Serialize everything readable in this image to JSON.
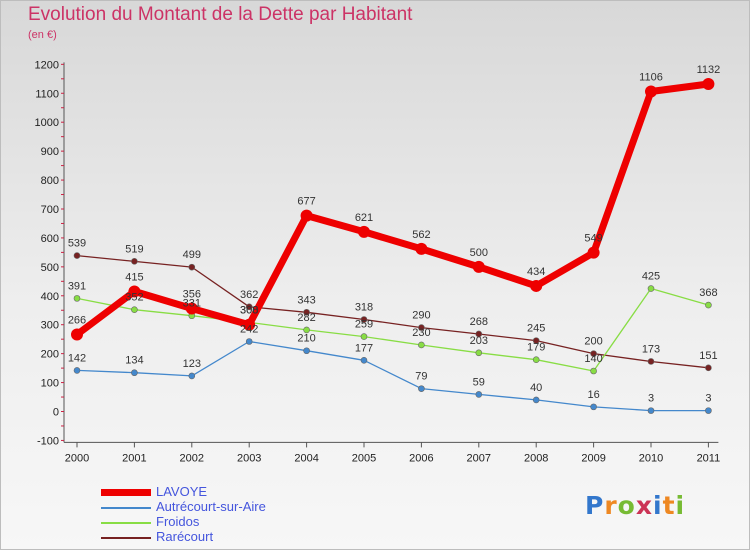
{
  "title": "Evolution du Montant de la Dette par Habitant",
  "unit": "(en €)",
  "logo": {
    "text": "Proxiti",
    "letter_colors": [
      "#3377cc",
      "#ee8822",
      "#77bb33",
      "#cc3355",
      "#3377cc",
      "#ee8822",
      "#77bb33"
    ]
  },
  "chart_data": {
    "type": "line",
    "title": "Evolution du Montant de la Dette par Habitant",
    "subtitle": "(en €)",
    "xlabel": "",
    "ylabel": "",
    "categories": [
      "2000",
      "2001",
      "2002",
      "2003",
      "2004",
      "2005",
      "2006",
      "2007",
      "2008",
      "2009",
      "2010",
      "2011"
    ],
    "ylim": [
      -100,
      1200
    ],
    "yticks": [
      -100,
      0,
      100,
      200,
      300,
      400,
      500,
      600,
      700,
      800,
      900,
      1000,
      1100,
      1200
    ],
    "grid": false,
    "legend_position": "bottom-left",
    "series": [
      {
        "name": "Rarécourt",
        "color": "#772222",
        "values": [
          539,
          519,
          499,
          362,
          343,
          318,
          290,
          268,
          245,
          200,
          173,
          151
        ]
      },
      {
        "name": "Froidos",
        "color": "#88dd44",
        "values": [
          391,
          352,
          331,
          308,
          282,
          259,
          230,
          203,
          179,
          140,
          425,
          368
        ]
      },
      {
        "name": "Autrécourt-sur-Aire",
        "color": "#4488cc",
        "values": [
          142,
          134,
          123,
          242,
          210,
          177,
          79,
          59,
          40,
          16,
          3,
          3
        ]
      },
      {
        "name": "LAVOYE",
        "color": "#ee0000",
        "values": [
          266,
          415,
          356,
          300,
          677,
          621,
          562,
          500,
          434,
          549,
          1106,
          1132
        ]
      }
    ]
  }
}
